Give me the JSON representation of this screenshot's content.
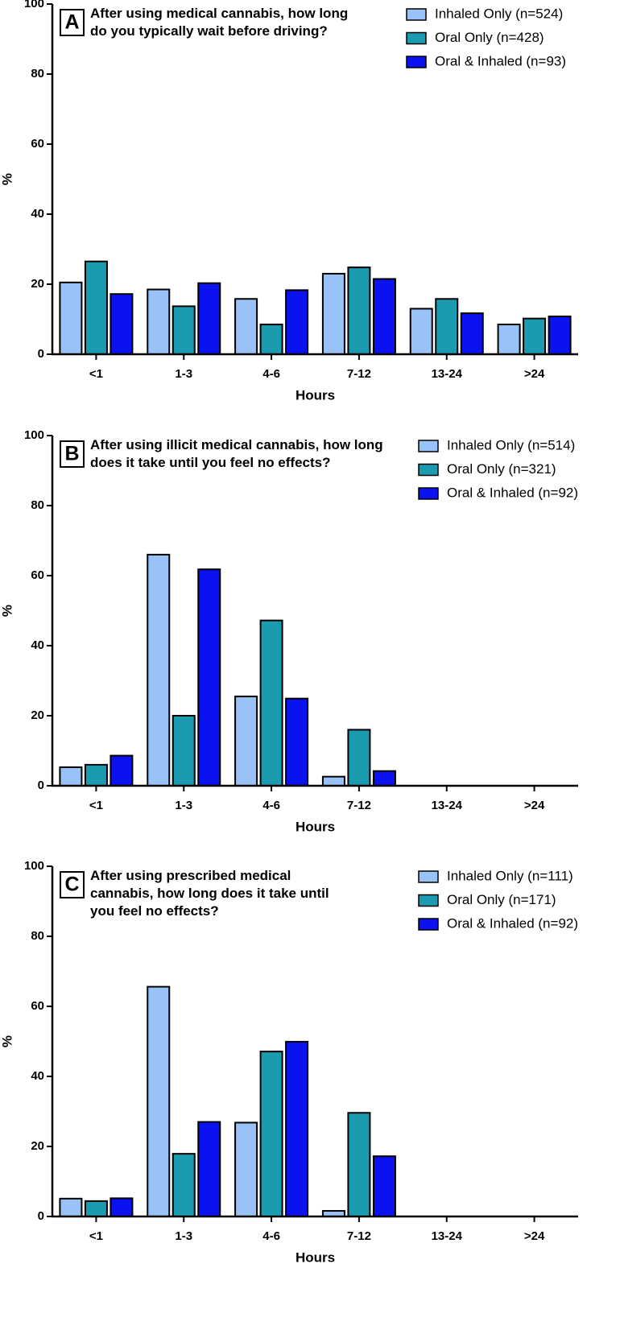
{
  "chart_data": [
    {
      "type": "bar",
      "panel_label": "A",
      "title": "After using medical cannabis, how long do you typically wait before driving?",
      "categories": [
        "<1",
        "1-3",
        "4-6",
        "7-12",
        "13-24",
        ">24"
      ],
      "series": [
        {
          "name": "Inhaled Only (n=524)",
          "color": "#99c2f7",
          "values": [
            20.5,
            18.5,
            15.8,
            23,
            13,
            8.5
          ]
        },
        {
          "name": "Oral Only (n=428)",
          "color": "#1b9bb0",
          "values": [
            26.5,
            13.7,
            8.5,
            24.8,
            15.8,
            10.2
          ]
        },
        {
          "name": "Oral & Inhaled (n=93)",
          "color": "#0a12ef",
          "values": [
            17.2,
            20.3,
            18.3,
            21.5,
            11.7,
            10.8
          ]
        }
      ],
      "xlabel": "Hours",
      "ylabel": "%",
      "ylim": [
        0,
        100
      ],
      "yticks": [
        0,
        20,
        40,
        60,
        80,
        100
      ],
      "grid": false
    },
    {
      "type": "bar",
      "panel_label": "B",
      "title": "After using illicit medical cannabis, how long does it take until you feel no effects?",
      "categories": [
        "<1",
        "1-3",
        "4-6",
        "7-12",
        "13-24",
        ">24"
      ],
      "series": [
        {
          "name": "Inhaled Only (n=514)",
          "color": "#99c2f7",
          "values": [
            5.3,
            66,
            25.5,
            2.6,
            0,
            0
          ]
        },
        {
          "name": "Oral Only (n=321)",
          "color": "#1b9bb0",
          "values": [
            6,
            20,
            47.2,
            16,
            0,
            0
          ]
        },
        {
          "name": "Oral & Inhaled (n=92)",
          "color": "#0a12ef",
          "values": [
            8.6,
            61.8,
            24.9,
            4.2,
            0,
            0
          ]
        }
      ],
      "xlabel": "Hours",
      "ylabel": "%",
      "ylim": [
        0,
        100
      ],
      "yticks": [
        0,
        20,
        40,
        60,
        80,
        100
      ],
      "grid": false
    },
    {
      "type": "bar",
      "panel_label": "C",
      "title": "After using prescribed medical cannabis, how long does it take until you feel no effects?",
      "categories": [
        "<1",
        "1-3",
        "4-6",
        "7-12",
        "13-24",
        ">24"
      ],
      "series": [
        {
          "name": "Inhaled Only (n=111)",
          "color": "#99c2f7",
          "values": [
            5.1,
            65.6,
            26.8,
            1.6,
            0,
            0
          ]
        },
        {
          "name": "Oral Only (n=171)",
          "color": "#1b9bb0",
          "values": [
            4.4,
            17.9,
            47.1,
            29.6,
            0,
            0
          ]
        },
        {
          "name": "Oral & Inhaled (n=92)",
          "color": "#0a12ef",
          "values": [
            5.2,
            27,
            49.9,
            17.2,
            0,
            0
          ]
        }
      ],
      "xlabel": "Hours",
      "ylabel": "%",
      "ylim": [
        0,
        100
      ],
      "yticks": [
        0,
        20,
        40,
        60,
        80,
        100
      ],
      "grid": false
    }
  ]
}
